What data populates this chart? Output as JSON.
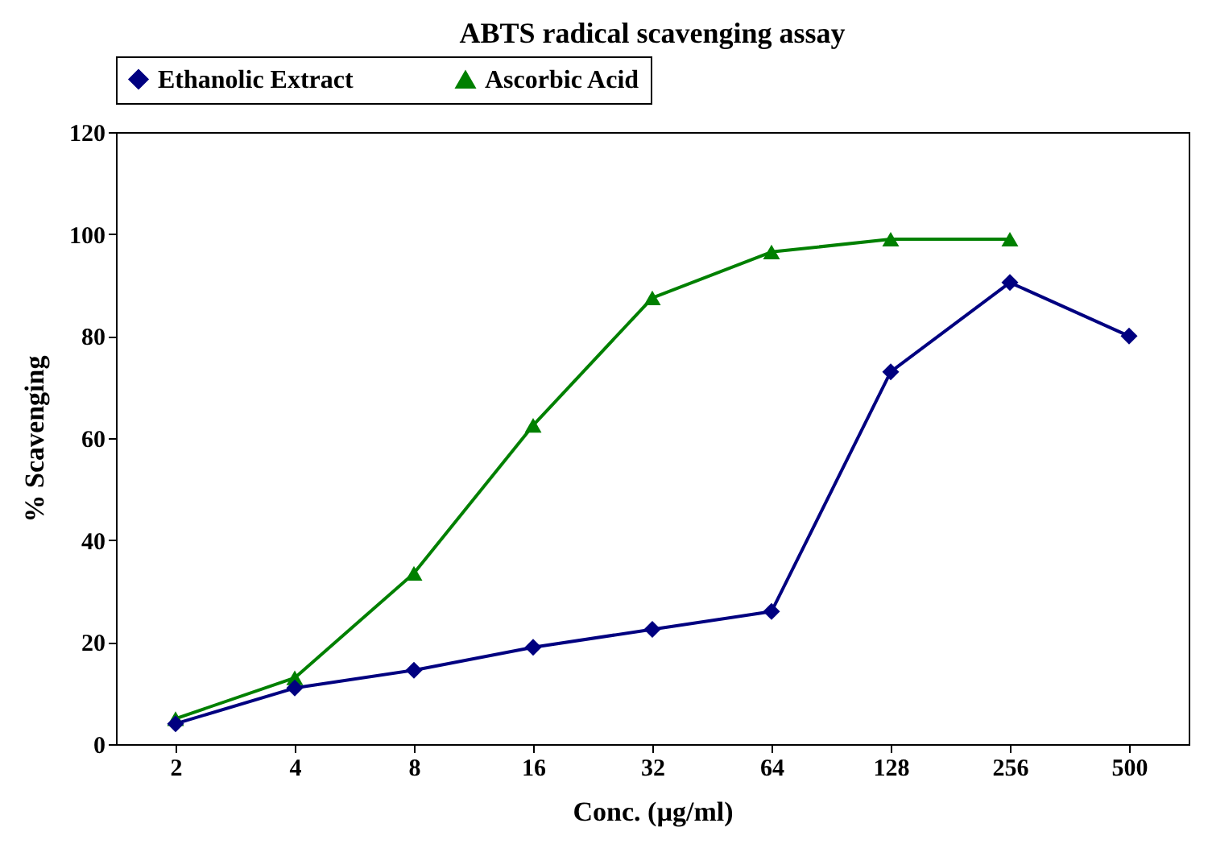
{
  "chart_data": {
    "type": "line",
    "title": "ABTS radical scavenging assay",
    "xlabel": "Conc. (µg/ml)",
    "ylabel": "% Scavenging",
    "categories": [
      "2",
      "4",
      "8",
      "16",
      "32",
      "64",
      "128",
      "256",
      "500"
    ],
    "series": [
      {
        "name": "Ethanolic Extract",
        "color": "#000080",
        "marker": "diamond",
        "values": [
          4,
          11,
          14.5,
          19,
          22.5,
          26,
          73,
          90.5,
          80
        ]
      },
      {
        "name": "Ascorbic Acid",
        "color": "#008000",
        "marker": "triangle",
        "values": [
          5,
          13,
          33.5,
          62.5,
          87.5,
          96.5,
          99,
          99,
          null
        ]
      }
    ],
    "ylim": [
      0,
      120
    ],
    "yticks": [
      0,
      20,
      40,
      60,
      80,
      100,
      120
    ],
    "grid": false,
    "legend": "top",
    "line_style": "solid"
  }
}
